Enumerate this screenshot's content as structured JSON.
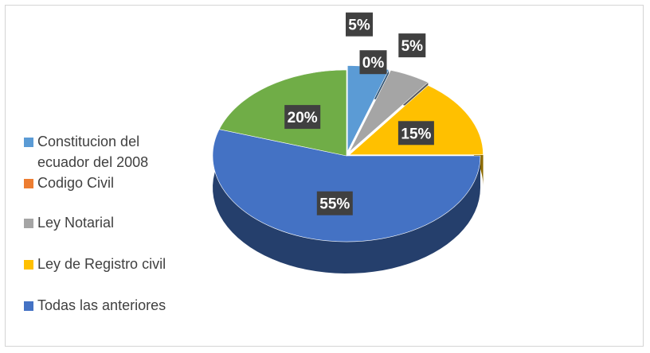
{
  "chart_data": {
    "type": "pie",
    "title": "",
    "legend_position": "left",
    "style": "3d-exploded",
    "categories": [
      "Constitucion del ecuador del 2008",
      "Codigo Civil",
      "Ley Notarial",
      "Ley de Registro civil",
      "Todas las anteriores"
    ],
    "values": [
      5,
      0,
      5,
      15,
      55
    ],
    "data_labels": [
      "5%",
      "0%",
      "5%",
      "15%",
      "55%"
    ],
    "colors": [
      "#5b9bd5",
      "#ed7d31",
      "#a5a5a5",
      "#ffc000",
      "#4472c4"
    ],
    "extra_slices": [
      {
        "value": 20,
        "label": "20%",
        "color": "#70ad47"
      }
    ]
  }
}
